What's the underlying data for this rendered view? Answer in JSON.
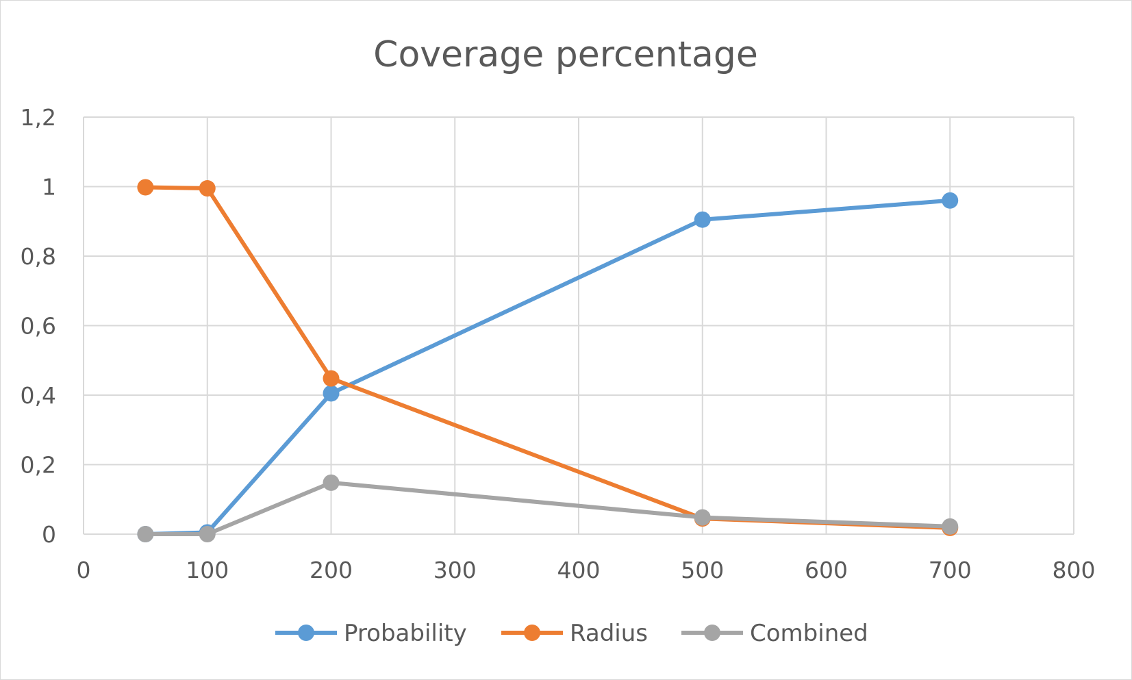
{
  "chart_data": {
    "type": "scatter",
    "title": "Coverage percentage",
    "xlabel": "",
    "ylabel": "",
    "xlim": [
      0,
      800
    ],
    "ylim": [
      0,
      1.2
    ],
    "x_ticks": [
      "0",
      "100",
      "200",
      "300",
      "400",
      "500",
      "600",
      "700",
      "800"
    ],
    "y_ticks": [
      "0",
      "0,2",
      "0,4",
      "0,6",
      "0,8",
      "1",
      "1,2"
    ],
    "grid": true,
    "legend_position": "bottom",
    "series": [
      {
        "name": "Probability",
        "color": "#5b9bd5",
        "x": [
          50,
          100,
          200,
          500,
          700
        ],
        "y": [
          0.0,
          0.005,
          0.405,
          0.905,
          0.96
        ]
      },
      {
        "name": "Radius",
        "color": "#ed7d31",
        "x": [
          50,
          100,
          200,
          500,
          700
        ],
        "y": [
          0.998,
          0.995,
          0.448,
          0.045,
          0.018
        ]
      },
      {
        "name": "Combined",
        "color": "#a5a5a5",
        "x": [
          50,
          100,
          200,
          500,
          700
        ],
        "y": [
          0.0,
          0.0,
          0.148,
          0.048,
          0.022
        ]
      }
    ]
  }
}
